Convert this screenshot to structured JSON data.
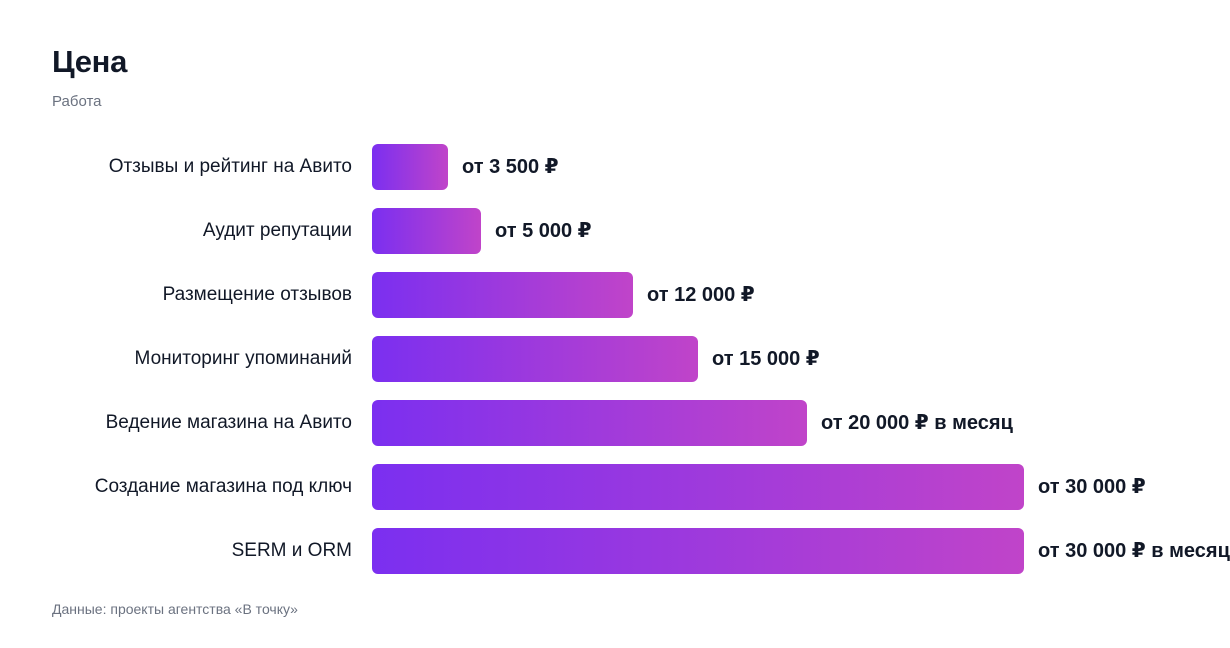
{
  "title": "Цена",
  "subtitle": "Работа",
  "source": "Данные: проекты агентства «В точку»",
  "colors": {
    "bar_start": "#7b2ff0",
    "bar_end": "#c044c9",
    "text": "#111827",
    "muted": "#6b7280"
  },
  "chart_data": {
    "type": "bar",
    "orientation": "horizontal",
    "title": "Цена",
    "subtitle": "Работа",
    "xlim": [
      0,
      30000
    ],
    "grid": false,
    "categories": [
      "Отзывы и рейтинг на Авито",
      "Аудит репутации",
      "Размещение отзывов",
      "Мониторинг упоминаний",
      "Ведение магазина на Авито",
      "Создание магазина под ключ",
      "SERM и ORM"
    ],
    "values": [
      3500,
      5000,
      12000,
      15000,
      20000,
      30000,
      30000
    ],
    "value_labels": [
      "от 3 500 ₽",
      "от 5 000 ₽",
      "от 12 000 ₽",
      "от 15 000 ₽",
      "от 20 000 ₽ в месяц",
      "от 30 000 ₽",
      "от 30 000 ₽ в месяц"
    ]
  }
}
